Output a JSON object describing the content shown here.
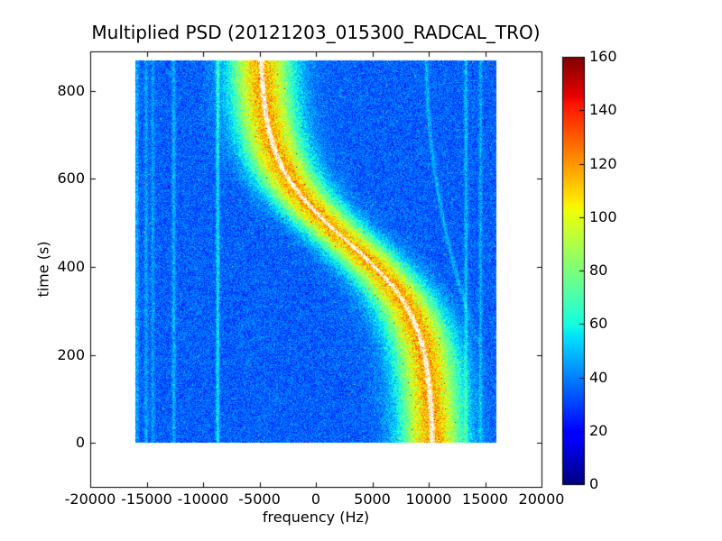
{
  "chart_data": {
    "type": "heatmap",
    "title": "Multiplied PSD (20121203_015300_RADCAL_TRO)",
    "xlabel": "frequency (Hz)",
    "ylabel": "time (s)",
    "xlim": [
      -20000,
      20000
    ],
    "ylim": [
      -100,
      890
    ],
    "xticks": [
      -20000,
      -15000,
      -10000,
      -5000,
      0,
      5000,
      10000,
      15000,
      20000
    ],
    "xtick_labels": [
      "-20000",
      "-15000",
      "-10000",
      "-5000",
      "0",
      "5000",
      "10000",
      "15000",
      "20000"
    ],
    "yticks": [
      0,
      200,
      400,
      600,
      800
    ],
    "ytick_labels": [
      "0",
      "200",
      "400",
      "600",
      "800"
    ],
    "grid": false,
    "colormap": "jet",
    "colorbar": {
      "vmin": 0,
      "vmax": 160,
      "ticks": [
        0,
        20,
        40,
        60,
        80,
        100,
        120,
        140,
        160
      ],
      "tick_labels": [
        "0",
        "20",
        "40",
        "60",
        "80",
        "100",
        "120",
        "140",
        "160"
      ],
      "position": "right"
    },
    "extent": {
      "fmin": -16000,
      "fmax": 16000,
      "tmin": 0,
      "tmax": 870
    },
    "background_level": 35,
    "noise_amplitude": 12,
    "ridge": {
      "model": "f(t) = offset + amplitude * tanh((t_mid - t) / tau)",
      "offset": 2700,
      "amplitude": 7700,
      "t_mid": 460,
      "tau": 176,
      "peak_add": 82,
      "sigma_hz": 1900,
      "center_line_color": "#ffffff",
      "points": [
        {
          "t": 0,
          "f": 10320
        },
        {
          "t": 100,
          "f": 10150
        },
        {
          "t": 200,
          "f": 9640
        },
        {
          "t": 300,
          "f": 8250
        },
        {
          "t": 400,
          "f": 5230
        },
        {
          "t": 500,
          "f": 980
        },
        {
          "t": 600,
          "f": -2390
        },
        {
          "t": 700,
          "f": -4060
        },
        {
          "t": 800,
          "f": -4680
        },
        {
          "t": 870,
          "f": -4860
        }
      ]
    },
    "vertical_lines": [
      {
        "f": -15850,
        "add": 13
      },
      {
        "f": -15050,
        "add": 11
      },
      {
        "f": -14450,
        "add": 10
      },
      {
        "f": -12600,
        "add": 14
      },
      {
        "f": -8700,
        "add": 22
      },
      {
        "f": 13300,
        "add": 15
      },
      {
        "f": 14600,
        "add": 12
      }
    ],
    "faint_arc": {
      "t_start": 200,
      "t_end": 880,
      "f_start": 14800,
      "f_end": 9800,
      "add": 13
    },
    "colors": {
      "figure_bg": "#ffffff",
      "frame": "#000000",
      "jet_low": "#00007f",
      "jet_high": "#7f0000"
    }
  }
}
